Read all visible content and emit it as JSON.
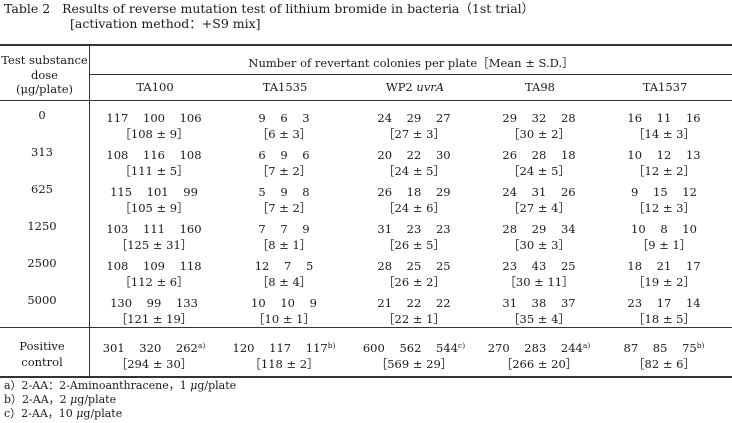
{
  "caption": {
    "line1": "Table 2   Results of reverse mutation test of lithium bromide in bacteria（1st trial）",
    "line2": "[activation method：+S9 mix]"
  },
  "header": {
    "dose_col": [
      "Test substance",
      "dose",
      "(μg/plate)"
    ],
    "group": "Number of revertant colonies per plate［Mean ± S.D.］",
    "strains": [
      {
        "name": "TA100",
        "suffix": ""
      },
      {
        "name": "TA1535",
        "suffix": ""
      },
      {
        "name": "WP2 ",
        "suffix": "uvrA"
      },
      {
        "name": "TA98",
        "suffix": ""
      },
      {
        "name": "TA1537",
        "suffix": ""
      }
    ]
  },
  "rows": [
    {
      "dose": "0",
      "cells": [
        {
          "vals": "117 100 106",
          "sup": "",
          "mean": "［108 ± 9］"
        },
        {
          "vals": "9 6 3",
          "sup": "",
          "mean": "［6 ± 3］"
        },
        {
          "vals": "24 29 27",
          "sup": "",
          "mean": "［27 ± 3］"
        },
        {
          "vals": "29 32 28",
          "sup": "",
          "mean": "［30 ± 2］"
        },
        {
          "vals": "16 11 16",
          "sup": "",
          "mean": "［14 ± 3］"
        }
      ]
    },
    {
      "dose": "313",
      "cells": [
        {
          "vals": "108 116 108",
          "sup": "",
          "mean": "［111 ± 5］"
        },
        {
          "vals": "6 9 6",
          "sup": "",
          "mean": "［7 ± 2］"
        },
        {
          "vals": "20 22 30",
          "sup": "",
          "mean": "［24 ± 5］"
        },
        {
          "vals": "26 28 18",
          "sup": "",
          "mean": "［24 ± 5］"
        },
        {
          "vals": "10 12 13",
          "sup": "",
          "mean": "［12 ± 2］"
        }
      ]
    },
    {
      "dose": "625",
      "cells": [
        {
          "vals": "115 101 99",
          "sup": "",
          "mean": "［105 ± 9］"
        },
        {
          "vals": "5 9 8",
          "sup": "",
          "mean": "［7 ± 2］"
        },
        {
          "vals": "26 18 29",
          "sup": "",
          "mean": "［24 ± 6］"
        },
        {
          "vals": "24 31 26",
          "sup": "",
          "mean": "［27 ± 4］"
        },
        {
          "vals": "9 15 12",
          "sup": "",
          "mean": "［12 ± 3］"
        }
      ]
    },
    {
      "dose": "1250",
      "cells": [
        {
          "vals": "103 111 160",
          "sup": "",
          "mean": "［125 ± 31］"
        },
        {
          "vals": "7 7 9",
          "sup": "",
          "mean": "［8 ± 1］"
        },
        {
          "vals": "31 23 23",
          "sup": "",
          "mean": "［26 ± 5］"
        },
        {
          "vals": "28 29 34",
          "sup": "",
          "mean": "［30 ± 3］"
        },
        {
          "vals": "10 8 10",
          "sup": "",
          "mean": "［9 ± 1］"
        }
      ]
    },
    {
      "dose": "2500",
      "cells": [
        {
          "vals": "108 109 118",
          "sup": "",
          "mean": "［112 ± 6］"
        },
        {
          "vals": "12 7 5",
          "sup": "",
          "mean": "［8 ± 4］"
        },
        {
          "vals": "28 25 25",
          "sup": "",
          "mean": "［26 ± 2］"
        },
        {
          "vals": "23 43 25",
          "sup": "",
          "mean": "［30 ± 11］"
        },
        {
          "vals": "18 21 17",
          "sup": "",
          "mean": "［19 ± 2］"
        }
      ]
    },
    {
      "dose": "5000",
      "cells": [
        {
          "vals": "130 99 133",
          "sup": "",
          "mean": "［121 ± 19］"
        },
        {
          "vals": "10 10 9",
          "sup": "",
          "mean": "［10 ± 1］"
        },
        {
          "vals": "21 22 22",
          "sup": "",
          "mean": "［22 ± 1］"
        },
        {
          "vals": "31 38 37",
          "sup": "",
          "mean": "［35 ± 4］"
        },
        {
          "vals": "23 17 14",
          "sup": "",
          "mean": "［18 ± 5］"
        }
      ]
    }
  ],
  "positive": {
    "label": [
      "Positive",
      "control"
    ],
    "cells": [
      {
        "vals": "301 320 262",
        "sup": "a)",
        "mean": "［294 ± 30］"
      },
      {
        "vals": "120 117 117",
        "sup": "b)",
        "mean": "［118 ± 2］"
      },
      {
        "vals": "600 562 544",
        "sup": "c)",
        "mean": "［569 ± 29］"
      },
      {
        "vals": "270 283 244",
        "sup": "a)",
        "mean": "［266 ± 20］"
      },
      {
        "vals": "87 85 75",
        "sup": "b)",
        "mean": "［82 ± 6］"
      }
    ]
  },
  "notes": [
    {
      "pre": "a）2-AA：2-Aminoanthracene，1 ",
      "unit": "μ",
      "post": "g/plate"
    },
    {
      "pre": "b）2-AA，2 ",
      "unit": "μ",
      "post": "g/plate"
    },
    {
      "pre": "c）2-AA，10 ",
      "unit": "μ",
      "post": "g/plate"
    }
  ]
}
